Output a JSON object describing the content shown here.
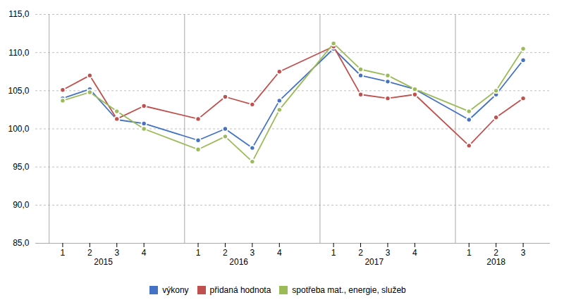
{
  "chart_data": {
    "type": "line",
    "categories": [
      "1",
      "2",
      "3",
      "4",
      "1",
      "2",
      "3",
      "4",
      "1",
      "2",
      "3",
      "4",
      "1",
      "2",
      "3"
    ],
    "groups": [
      "2015",
      "2015",
      "2015",
      "2015",
      "2016",
      "2016",
      "2016",
      "2016",
      "2017",
      "2017",
      "2017",
      "2017",
      "2018",
      "2018",
      "2018"
    ],
    "series": [
      {
        "name": "výkony",
        "color": "#4472C4",
        "values": [
          104.0,
          105.2,
          101.2,
          100.7,
          98.5,
          100.0,
          97.5,
          103.7,
          110.5,
          107.0,
          106.2,
          105.2,
          101.2,
          104.5,
          109.0
        ]
      },
      {
        "name": "přidaná hodnota",
        "color": "#C0504D",
        "values": [
          105.1,
          107.0,
          101.3,
          103.0,
          101.3,
          104.2,
          103.2,
          107.5,
          110.8,
          104.5,
          104.0,
          104.5,
          97.8,
          101.5,
          104.0
        ]
      },
      {
        "name": "spotřeba mat., energie, služeb",
        "color": "#9BBB59",
        "values": [
          103.7,
          104.8,
          102.3,
          100.0,
          97.3,
          99.0,
          95.7,
          102.5,
          111.2,
          107.8,
          107.0,
          105.2,
          102.3,
          105.0,
          110.5
        ]
      }
    ],
    "ylim": [
      85.0,
      115.0
    ],
    "yticks": [
      {
        "value": 85.0,
        "label": "85,0"
      },
      {
        "value": 90.0,
        "label": "90,0"
      },
      {
        "value": 95.0,
        "label": "95,0"
      },
      {
        "value": 100.0,
        "label": "100,0"
      },
      {
        "value": 105.0,
        "label": "105,0"
      },
      {
        "value": 110.0,
        "label": "110,0"
      },
      {
        "value": 115.0,
        "label": "115,0"
      }
    ],
    "grid": true,
    "legend": "bottom",
    "marker": "circle"
  }
}
